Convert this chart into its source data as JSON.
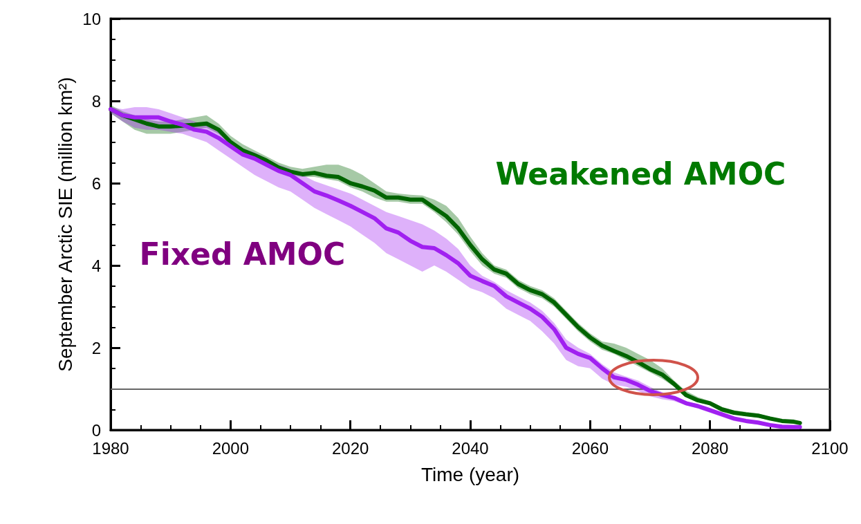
{
  "chart_data": {
    "type": "line",
    "xlabel": "Time (year)",
    "ylabel": "September Arctic SIE (million km²)",
    "x": [
      1980,
      1982,
      1984,
      1986,
      1988,
      1990,
      1992,
      1994,
      1996,
      1998,
      2000,
      2002,
      2004,
      2006,
      2008,
      2010,
      2012,
      2014,
      2016,
      2018,
      2020,
      2022,
      2024,
      2026,
      2028,
      2030,
      2032,
      2034,
      2036,
      2038,
      2040,
      2042,
      2044,
      2046,
      2048,
      2050,
      2052,
      2054,
      2056,
      2058,
      2060,
      2062,
      2064,
      2066,
      2068,
      2070,
      2072,
      2074,
      2076,
      2078,
      2080,
      2082,
      2084,
      2086,
      2088,
      2090,
      2092,
      2094,
      2095
    ],
    "series": [
      {
        "name": "Weakened AMOC",
        "color": "#006400",
        "values": [
          7.8,
          7.65,
          7.55,
          7.45,
          7.38,
          7.38,
          7.4,
          7.42,
          7.45,
          7.3,
          7.0,
          6.8,
          6.68,
          6.55,
          6.38,
          6.28,
          6.22,
          6.25,
          6.18,
          6.15,
          6.0,
          5.92,
          5.82,
          5.65,
          5.65,
          5.6,
          5.6,
          5.4,
          5.2,
          4.9,
          4.5,
          4.15,
          3.9,
          3.8,
          3.55,
          3.4,
          3.3,
          3.1,
          2.8,
          2.5,
          2.25,
          2.05,
          1.92,
          1.8,
          1.65,
          1.48,
          1.35,
          1.12,
          0.85,
          0.72,
          0.65,
          0.5,
          0.42,
          0.38,
          0.35,
          0.28,
          0.22,
          0.2,
          0.17
        ],
        "lower": [
          7.7,
          7.5,
          7.3,
          7.2,
          7.2,
          7.2,
          7.25,
          7.3,
          7.35,
          7.2,
          6.95,
          6.75,
          6.6,
          6.45,
          6.3,
          6.2,
          6.15,
          6.15,
          6.1,
          6.05,
          5.9,
          5.8,
          5.65,
          5.55,
          5.55,
          5.5,
          5.5,
          5.3,
          5.05,
          4.75,
          4.35,
          4.0,
          3.8,
          3.7,
          3.45,
          3.3,
          3.2,
          3.0,
          2.7,
          2.4,
          2.15,
          1.95,
          1.85,
          1.7,
          1.55,
          1.4,
          1.25,
          1.05,
          0.8,
          0.68,
          0.6,
          0.45,
          0.38,
          0.34,
          0.3,
          0.24,
          0.18,
          0.16,
          0.14
        ],
        "upper": [
          7.9,
          7.75,
          7.65,
          7.55,
          7.5,
          7.5,
          7.55,
          7.6,
          7.65,
          7.45,
          7.15,
          6.95,
          6.8,
          6.65,
          6.5,
          6.4,
          6.35,
          6.4,
          6.45,
          6.45,
          6.35,
          6.2,
          6.0,
          5.8,
          5.75,
          5.72,
          5.7,
          5.6,
          5.45,
          5.15,
          4.7,
          4.3,
          4.0,
          3.9,
          3.65,
          3.5,
          3.4,
          3.2,
          2.9,
          2.6,
          2.35,
          2.15,
          2.1,
          2.0,
          1.85,
          1.7,
          1.5,
          1.2,
          0.95,
          0.8,
          0.7,
          0.56,
          0.48,
          0.44,
          0.4,
          0.32,
          0.26,
          0.22,
          0.19
        ]
      },
      {
        "name": "Fixed AMOC",
        "color": "#a020f0",
        "values": [
          7.8,
          7.65,
          7.6,
          7.6,
          7.6,
          7.5,
          7.42,
          7.3,
          7.25,
          7.1,
          6.9,
          6.7,
          6.6,
          6.45,
          6.3,
          6.2,
          6.0,
          5.8,
          5.7,
          5.58,
          5.45,
          5.3,
          5.15,
          4.9,
          4.8,
          4.6,
          4.45,
          4.42,
          4.25,
          4.05,
          3.75,
          3.62,
          3.5,
          3.25,
          3.1,
          2.95,
          2.75,
          2.45,
          2.0,
          1.85,
          1.75,
          1.5,
          1.28,
          1.22,
          1.1,
          0.95,
          0.85,
          0.78,
          0.65,
          0.58,
          0.48,
          0.38,
          0.28,
          0.22,
          0.18,
          0.12,
          0.08,
          0.07,
          0.07
        ],
        "lower": [
          7.7,
          7.5,
          7.35,
          7.3,
          7.3,
          7.25,
          7.2,
          7.1,
          7.0,
          6.8,
          6.6,
          6.4,
          6.2,
          6.05,
          5.9,
          5.8,
          5.6,
          5.4,
          5.25,
          5.1,
          4.95,
          4.75,
          4.55,
          4.3,
          4.15,
          4.0,
          3.85,
          4.0,
          3.85,
          3.65,
          3.45,
          3.35,
          3.2,
          2.95,
          2.8,
          2.65,
          2.4,
          2.1,
          1.7,
          1.55,
          1.5,
          1.25,
          1.1,
          1.05,
          0.95,
          0.82,
          0.75,
          0.7,
          0.6,
          0.52,
          0.42,
          0.32,
          0.22,
          0.17,
          0.14,
          0.09,
          0.05,
          0.04,
          0.04
        ],
        "upper": [
          7.85,
          7.8,
          7.85,
          7.85,
          7.8,
          7.7,
          7.6,
          7.5,
          7.4,
          7.25,
          7.05,
          6.85,
          6.75,
          6.6,
          6.45,
          6.35,
          6.2,
          6.05,
          5.95,
          5.85,
          5.75,
          5.6,
          5.45,
          5.3,
          5.2,
          5.1,
          5.0,
          4.85,
          4.65,
          4.4,
          4.0,
          3.75,
          3.6,
          3.4,
          3.25,
          3.1,
          2.9,
          2.6,
          2.2,
          2.0,
          1.85,
          1.6,
          1.4,
          1.3,
          1.2,
          1.05,
          0.92,
          0.82,
          0.7,
          0.62,
          0.52,
          0.42,
          0.32,
          0.25,
          0.2,
          0.14,
          0.1,
          0.09,
          0.09
        ]
      }
    ],
    "xlim": [
      1980,
      2100
    ],
    "xticks": [
      1980,
      2000,
      2020,
      2040,
      2060,
      2080,
      2100
    ],
    "ylim": [
      0,
      10
    ],
    "yticks": [
      0,
      2,
      4,
      6,
      8,
      10
    ],
    "ref_lines": [
      {
        "axis": "y",
        "value": 1,
        "color": "#666666"
      }
    ],
    "grid": false,
    "legend": false,
    "marker": "none",
    "line_style": "solid"
  }
}
